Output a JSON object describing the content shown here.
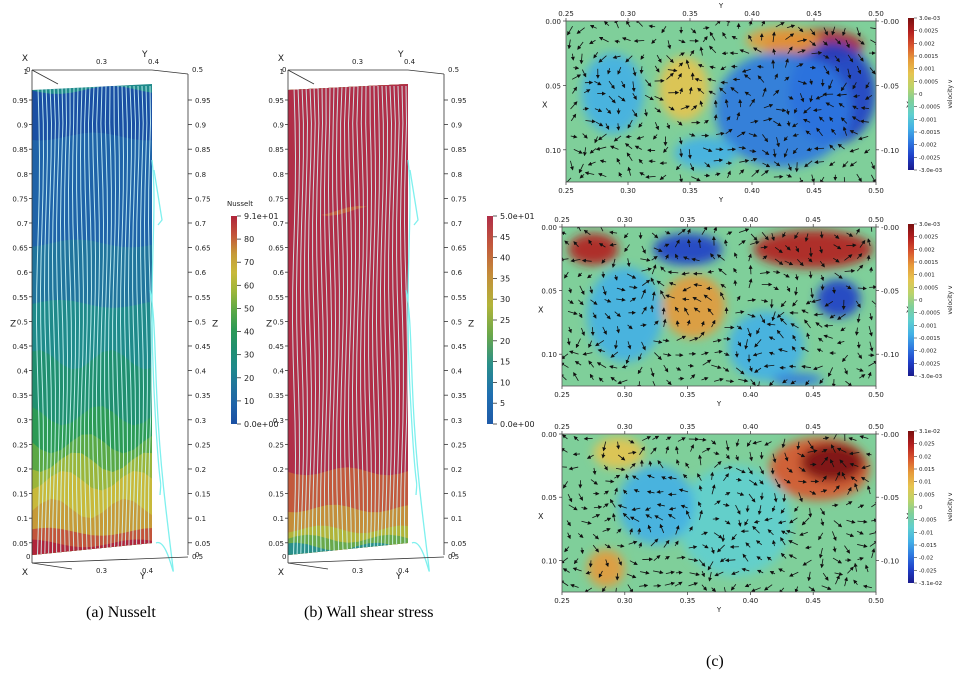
{
  "captions": {
    "a": "(a) Nusselt",
    "b": "(b) Wall shear stress",
    "c": "(c)"
  },
  "panels3d": [
    {
      "id": "nusselt",
      "axis_x": "X",
      "axis_y": "Y",
      "axis_z": "Z",
      "top_ticks": [
        "0",
        "0.3",
        "0.4",
        "0.5"
      ],
      "bottom_ticks": [
        "0",
        "0.3",
        "0.4",
        "0.5"
      ],
      "z_ticks": [
        "0.95",
        "0.9",
        "0.85",
        "0.8",
        "0.75",
        "0.7",
        "0.65",
        "0.6",
        "0.55",
        "0.5",
        "0.45",
        "0.4",
        "0.35",
        "0.3",
        "0.25",
        "0.2",
        "0.15",
        "0.1",
        "0.05"
      ],
      "z_top": "1",
      "z_bottom": "0",
      "colorbar": {
        "title": "Nusselt",
        "labels": [
          "9.1e+01",
          "80",
          "70",
          "60",
          "50",
          "40",
          "30",
          "20",
          "10",
          "0.0e+00"
        ],
        "min": 0,
        "max": 91
      }
    },
    {
      "id": "wall-shear",
      "axis_x": "X",
      "axis_y": "Y",
      "axis_z": "Z",
      "top_ticks": [
        "0",
        "0.3",
        "0.4",
        "0.5"
      ],
      "bottom_ticks": [
        "0",
        "0.3",
        "0.4",
        "0.5"
      ],
      "z_ticks": [
        "0.95",
        "0.9",
        "0.85",
        "0.8",
        "0.75",
        "0.7",
        "0.65",
        "0.6",
        "0.55",
        "0.5",
        "0.45",
        "0.4",
        "0.35",
        "0.3",
        "0.25",
        "0.2",
        "0.15",
        "0.1",
        "0.05"
      ],
      "z_top": "1",
      "z_bottom": "0",
      "colorbar": {
        "title": "",
        "labels": [
          "5.0e+01",
          "45",
          "40",
          "35",
          "30",
          "25",
          "20",
          "15",
          "10",
          "5",
          "0.0e+00"
        ],
        "min": 0,
        "max": 50
      }
    }
  ],
  "slices": [
    {
      "id": "slice-1",
      "top_ticks": [
        "0.25",
        "0.30",
        "0.35",
        "0.40",
        "0.45",
        "0.50"
      ],
      "top_axis": "Y",
      "bottom_ticks": [
        "0.25",
        "0.30",
        "0.35",
        "0.40",
        "0.45",
        "0.50"
      ],
      "bottom_axis": "Y",
      "left_ticks": [
        "0.00",
        "0.05",
        "0.10"
      ],
      "left_axis": "X",
      "right_ticks": [
        "0.00",
        "0.05",
        "0.10"
      ],
      "right_axis": "X",
      "colorbar": {
        "title": "velocity v",
        "labels": [
          "3.0e-03",
          "0.0025",
          "0.002",
          "0.0015",
          "0.001",
          "0.0005",
          "0",
          "-0.0005",
          "-0.001",
          "-0.0015",
          "-0.002",
          "-0.0025",
          "-3.0e-03"
        ]
      }
    },
    {
      "id": "slice-2",
      "top_ticks": [
        "0.25",
        "0.30",
        "0.35",
        "0.40",
        "0.45",
        "0.50"
      ],
      "top_axis": "",
      "bottom_ticks": [
        "0.25",
        "0.30",
        "0.35",
        "0.40",
        "0.45",
        "0.50"
      ],
      "bottom_axis": "Y",
      "left_ticks": [
        "0.00",
        "0.05",
        "0.10"
      ],
      "left_axis": "X",
      "right_ticks": [
        "0.00",
        "0.05",
        "0.10"
      ],
      "right_axis": "X",
      "colorbar": {
        "title": "velocity v",
        "labels": [
          "3.0e-03",
          "0.0025",
          "0.002",
          "0.0015",
          "0.001",
          "0.0005",
          "0",
          "-0.0005",
          "-0.001",
          "-0.0015",
          "-0.002",
          "-0.0025",
          "-3.0e-03"
        ]
      }
    },
    {
      "id": "slice-3",
      "top_ticks": [
        "0.25",
        "0.30",
        "0.35",
        "0.40",
        "0.45",
        "0.50"
      ],
      "top_axis": "",
      "bottom_ticks": [
        "0.25",
        "0.30",
        "0.35",
        "0.40",
        "0.45",
        "0.50"
      ],
      "bottom_axis": "Y",
      "left_ticks": [
        "0.00",
        "0.05",
        "0.10"
      ],
      "left_axis": "X",
      "right_ticks": [
        "0.00",
        "0.05",
        "0.10"
      ],
      "right_axis": "X",
      "colorbar": {
        "title": "velocity v",
        "labels": [
          "3.1e-02",
          "0.025",
          "0.02",
          "0.015",
          "0.01",
          "0.005",
          "0",
          "-0.005",
          "-0.01",
          "-0.015",
          "-0.02",
          "-0.025",
          "-3.1e-02"
        ]
      }
    }
  ],
  "colors": {
    "nusselt_bands": [
      "#1a4fa3",
      "#1f63a8",
      "#21749c",
      "#1f8a8a",
      "#208f6f",
      "#2c9a55",
      "#5aa845",
      "#9bb53a",
      "#c8b93a",
      "#c69a38",
      "#c2543a",
      "#b0243a"
    ],
    "shear_bands": [
      "#1f5aa8",
      "#2a8f8a",
      "#6aa84a",
      "#b2b43a",
      "#c48e3a",
      "#c2593c",
      "#b02e48"
    ],
    "streamline": "#7ff0ee",
    "diverging": [
      "#1a1a8c",
      "#1f3fc8",
      "#2f78e0",
      "#43b0e6",
      "#5fcfcf",
      "#7fcf9a",
      "#bcd36a",
      "#e6c450",
      "#e69a3a",
      "#d8552e",
      "#b41f1f",
      "#7a0f0f"
    ]
  }
}
